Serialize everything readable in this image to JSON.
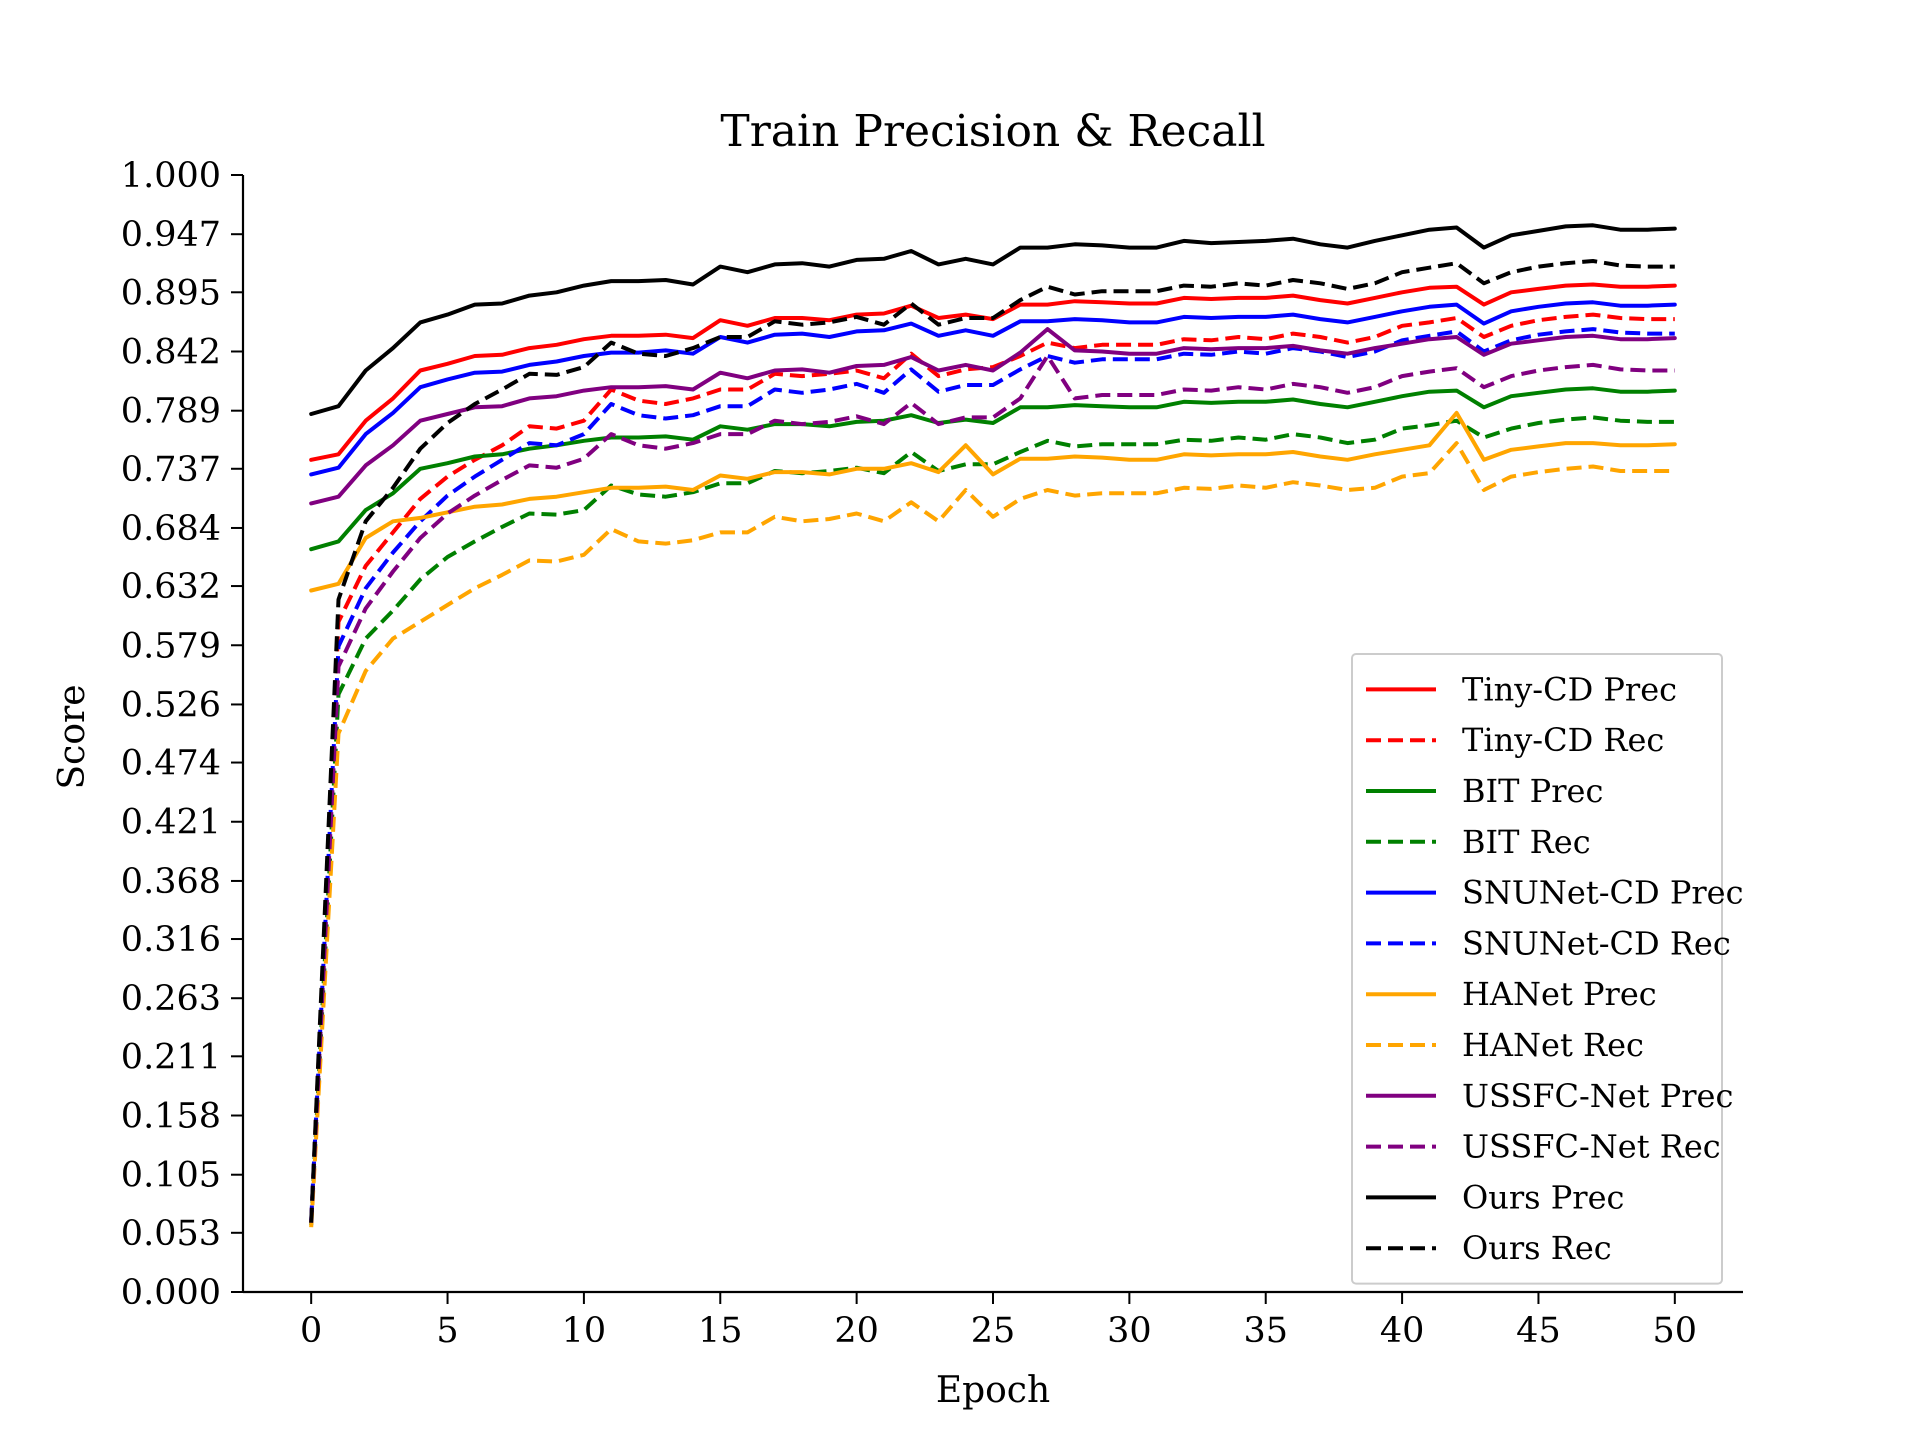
{
  "chart_data": {
    "type": "line",
    "title": "Train Precision & Recall",
    "xlabel": "Epoch",
    "ylabel": "Score",
    "xlim": [
      -2.5,
      52.5
    ],
    "ylim": [
      0,
      1
    ],
    "xticks": [
      "0",
      "5",
      "10",
      "15",
      "20",
      "25",
      "30",
      "35",
      "40",
      "45",
      "50"
    ],
    "yticks": [
      "0.000",
      "0.053",
      "0.105",
      "0.158",
      "0.211",
      "0.263",
      "0.316",
      "0.368",
      "0.421",
      "0.474",
      "0.526",
      "0.579",
      "0.632",
      "0.684",
      "0.737",
      "0.789",
      "0.842",
      "0.895",
      "0.947",
      "1.000"
    ],
    "grid": false,
    "legend_position": "lower right",
    "x": [
      0,
      1,
      2,
      3,
      4,
      5,
      6,
      7,
      8,
      9,
      10,
      11,
      12,
      13,
      14,
      15,
      16,
      17,
      18,
      19,
      20,
      21,
      22,
      23,
      24,
      25,
      26,
      27,
      28,
      29,
      30,
      31,
      32,
      33,
      34,
      35,
      36,
      37,
      38,
      39,
      40,
      41,
      42,
      43,
      44,
      45,
      46,
      47,
      48,
      49,
      50
    ],
    "series": [
      {
        "name": "Tiny-CD Prec",
        "color": "#ff0000",
        "dash": "solid",
        "values": [
          0.745,
          0.75,
          0.78,
          0.8,
          0.825,
          0.831,
          0.838,
          0.839,
          0.845,
          0.848,
          0.853,
          0.856,
          0.856,
          0.857,
          0.854,
          0.87,
          0.865,
          0.872,
          0.872,
          0.87,
          0.875,
          0.876,
          0.883,
          0.872,
          0.875,
          0.871,
          0.884,
          0.884,
          0.887,
          0.886,
          0.885,
          0.885,
          0.89,
          0.889,
          0.89,
          0.89,
          0.892,
          0.888,
          0.885,
          0.89,
          0.895,
          0.899,
          0.9,
          0.884,
          0.895,
          0.898,
          0.901,
          0.902,
          0.9,
          0.9,
          0.901
        ]
      },
      {
        "name": "Tiny-CD Rec",
        "color": "#ff0000",
        "dash": "dashed",
        "values": [
          0.062,
          0.6,
          0.65,
          0.68,
          0.71,
          0.73,
          0.745,
          0.758,
          0.775,
          0.773,
          0.78,
          0.808,
          0.798,
          0.795,
          0.8,
          0.808,
          0.808,
          0.822,
          0.82,
          0.822,
          0.825,
          0.818,
          0.84,
          0.82,
          0.826,
          0.828,
          0.838,
          0.85,
          0.845,
          0.848,
          0.848,
          0.848,
          0.853,
          0.852,
          0.855,
          0.853,
          0.858,
          0.855,
          0.85,
          0.855,
          0.865,
          0.868,
          0.872,
          0.855,
          0.865,
          0.87,
          0.873,
          0.875,
          0.872,
          0.871,
          0.871
        ]
      },
      {
        "name": "BIT Prec",
        "color": "#008000",
        "dash": "solid",
        "values": [
          0.665,
          0.672,
          0.7,
          0.715,
          0.737,
          0.742,
          0.748,
          0.75,
          0.755,
          0.758,
          0.762,
          0.765,
          0.765,
          0.766,
          0.763,
          0.775,
          0.772,
          0.777,
          0.777,
          0.775,
          0.779,
          0.78,
          0.785,
          0.778,
          0.781,
          0.778,
          0.792,
          0.792,
          0.794,
          0.793,
          0.792,
          0.792,
          0.797,
          0.796,
          0.797,
          0.797,
          0.799,
          0.795,
          0.792,
          0.797,
          0.802,
          0.806,
          0.807,
          0.792,
          0.802,
          0.805,
          0.808,
          0.809,
          0.806,
          0.806,
          0.807
        ]
      },
      {
        "name": "BIT Rec",
        "color": "#008000",
        "dash": "dashed",
        "values": [
          0.06,
          0.535,
          0.585,
          0.61,
          0.638,
          0.658,
          0.672,
          0.685,
          0.697,
          0.696,
          0.7,
          0.722,
          0.714,
          0.712,
          0.716,
          0.724,
          0.724,
          0.735,
          0.733,
          0.735,
          0.738,
          0.733,
          0.752,
          0.735,
          0.741,
          0.741,
          0.752,
          0.762,
          0.757,
          0.759,
          0.759,
          0.759,
          0.763,
          0.762,
          0.765,
          0.763,
          0.768,
          0.765,
          0.76,
          0.763,
          0.773,
          0.776,
          0.78,
          0.765,
          0.773,
          0.778,
          0.781,
          0.783,
          0.78,
          0.779,
          0.779
        ]
      },
      {
        "name": "SNUNet-CD Prec",
        "color": "#0000ff",
        "dash": "solid",
        "values": [
          0.732,
          0.738,
          0.768,
          0.787,
          0.81,
          0.817,
          0.823,
          0.824,
          0.83,
          0.833,
          0.838,
          0.841,
          0.841,
          0.843,
          0.84,
          0.855,
          0.85,
          0.857,
          0.858,
          0.855,
          0.86,
          0.861,
          0.867,
          0.856,
          0.861,
          0.856,
          0.869,
          0.869,
          0.871,
          0.87,
          0.868,
          0.868,
          0.873,
          0.872,
          0.873,
          0.873,
          0.875,
          0.871,
          0.868,
          0.873,
          0.878,
          0.882,
          0.884,
          0.867,
          0.878,
          0.882,
          0.885,
          0.886,
          0.883,
          0.883,
          0.884
        ]
      },
      {
        "name": "SNUNet-CD Rec",
        "color": "#0000ff",
        "dash": "dashed",
        "values": [
          0.064,
          0.578,
          0.63,
          0.662,
          0.69,
          0.713,
          0.73,
          0.745,
          0.76,
          0.758,
          0.768,
          0.795,
          0.785,
          0.782,
          0.785,
          0.793,
          0.793,
          0.808,
          0.805,
          0.808,
          0.813,
          0.805,
          0.826,
          0.806,
          0.812,
          0.812,
          0.826,
          0.838,
          0.832,
          0.835,
          0.835,
          0.835,
          0.84,
          0.839,
          0.842,
          0.84,
          0.845,
          0.842,
          0.837,
          0.842,
          0.852,
          0.856,
          0.86,
          0.842,
          0.852,
          0.857,
          0.86,
          0.862,
          0.859,
          0.858,
          0.858
        ]
      },
      {
        "name": "HANet Prec",
        "color": "#ffa500",
        "dash": "solid",
        "values": [
          0.628,
          0.634,
          0.675,
          0.69,
          0.693,
          0.698,
          0.703,
          0.705,
          0.71,
          0.712,
          0.716,
          0.72,
          0.72,
          0.721,
          0.718,
          0.731,
          0.728,
          0.734,
          0.734,
          0.732,
          0.737,
          0.737,
          0.742,
          0.734,
          0.758,
          0.732,
          0.746,
          0.746,
          0.748,
          0.747,
          0.745,
          0.745,
          0.75,
          0.749,
          0.75,
          0.75,
          0.752,
          0.748,
          0.745,
          0.75,
          0.754,
          0.758,
          0.787,
          0.745,
          0.754,
          0.757,
          0.76,
          0.76,
          0.758,
          0.758,
          0.759
        ]
      },
      {
        "name": "HANet Rec",
        "color": "#ffa500",
        "dash": "dashed",
        "values": [
          0.058,
          0.5,
          0.556,
          0.585,
          0.6,
          0.615,
          0.63,
          0.642,
          0.655,
          0.654,
          0.66,
          0.683,
          0.672,
          0.67,
          0.673,
          0.68,
          0.68,
          0.694,
          0.69,
          0.692,
          0.697,
          0.69,
          0.707,
          0.69,
          0.718,
          0.694,
          0.71,
          0.718,
          0.713,
          0.715,
          0.715,
          0.715,
          0.72,
          0.719,
          0.722,
          0.72,
          0.725,
          0.722,
          0.718,
          0.72,
          0.73,
          0.733,
          0.76,
          0.718,
          0.73,
          0.734,
          0.737,
          0.739,
          0.735,
          0.735,
          0.735
        ]
      },
      {
        "name": "USSFC-Net Prec",
        "color": "#800080",
        "dash": "solid",
        "values": [
          0.706,
          0.712,
          0.74,
          0.758,
          0.78,
          0.786,
          0.792,
          0.793,
          0.8,
          0.802,
          0.807,
          0.81,
          0.81,
          0.811,
          0.808,
          0.823,
          0.818,
          0.825,
          0.826,
          0.823,
          0.829,
          0.83,
          0.837,
          0.825,
          0.83,
          0.825,
          0.841,
          0.862,
          0.843,
          0.842,
          0.84,
          0.84,
          0.845,
          0.844,
          0.845,
          0.845,
          0.847,
          0.843,
          0.84,
          0.845,
          0.849,
          0.853,
          0.855,
          0.839,
          0.849,
          0.852,
          0.855,
          0.856,
          0.853,
          0.853,
          0.854
        ]
      },
      {
        "name": "USSFC-Net Rec",
        "color": "#800080",
        "dash": "dashed",
        "values": [
          0.062,
          0.56,
          0.612,
          0.645,
          0.675,
          0.697,
          0.713,
          0.727,
          0.74,
          0.738,
          0.746,
          0.768,
          0.758,
          0.755,
          0.76,
          0.768,
          0.768,
          0.78,
          0.777,
          0.779,
          0.784,
          0.777,
          0.796,
          0.777,
          0.783,
          0.783,
          0.8,
          0.838,
          0.8,
          0.803,
          0.803,
          0.803,
          0.808,
          0.807,
          0.81,
          0.808,
          0.813,
          0.81,
          0.805,
          0.81,
          0.82,
          0.824,
          0.827,
          0.81,
          0.82,
          0.825,
          0.828,
          0.83,
          0.826,
          0.825,
          0.825
        ]
      },
      {
        "name": "Ours Prec",
        "color": "#000000",
        "dash": "solid",
        "values": [
          0.786,
          0.793,
          0.825,
          0.845,
          0.868,
          0.875,
          0.884,
          0.885,
          0.892,
          0.895,
          0.901,
          0.905,
          0.905,
          0.906,
          0.902,
          0.918,
          0.913,
          0.92,
          0.921,
          0.918,
          0.924,
          0.925,
          0.932,
          0.92,
          0.925,
          0.92,
          0.935,
          0.935,
          0.938,
          0.937,
          0.935,
          0.935,
          0.941,
          0.939,
          0.94,
          0.941,
          0.943,
          0.938,
          0.935,
          0.941,
          0.946,
          0.951,
          0.953,
          0.935,
          0.946,
          0.95,
          0.954,
          0.955,
          0.951,
          0.951,
          0.952
        ]
      },
      {
        "name": "Ours Rec",
        "color": "#000000",
        "dash": "dashed",
        "values": [
          0.062,
          0.62,
          0.69,
          0.72,
          0.755,
          0.778,
          0.795,
          0.808,
          0.822,
          0.821,
          0.828,
          0.85,
          0.84,
          0.838,
          0.845,
          0.855,
          0.855,
          0.869,
          0.866,
          0.868,
          0.873,
          0.866,
          0.885,
          0.866,
          0.872,
          0.872,
          0.888,
          0.9,
          0.893,
          0.896,
          0.896,
          0.896,
          0.901,
          0.9,
          0.903,
          0.901,
          0.906,
          0.903,
          0.898,
          0.903,
          0.913,
          0.917,
          0.921,
          0.903,
          0.913,
          0.918,
          0.921,
          0.923,
          0.919,
          0.918,
          0.918
        ]
      }
    ]
  }
}
